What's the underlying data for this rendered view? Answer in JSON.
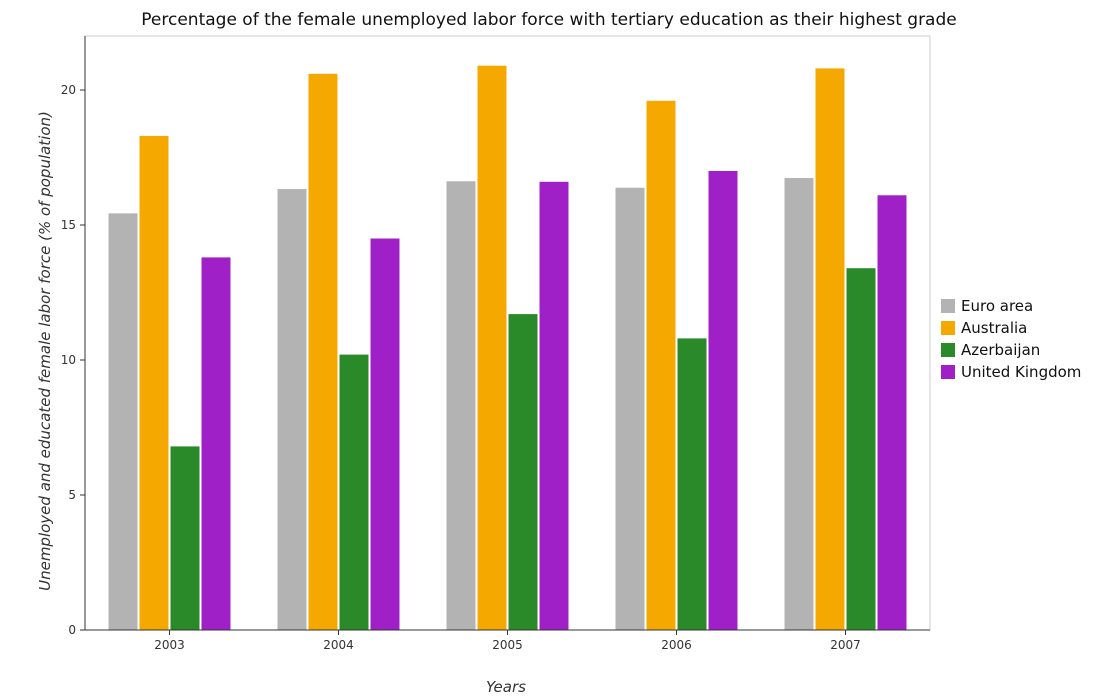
{
  "chart_data": {
    "type": "bar",
    "title": "Percentage of the female unemployed labor force with tertiary education as their highest grade",
    "xlabel": "Years",
    "ylabel": "Unemployed and educated female labor force (% of population)",
    "categories": [
      "2003",
      "2004",
      "2005",
      "2006",
      "2007"
    ],
    "ylim": [
      0,
      22
    ],
    "yticks": [
      0,
      5,
      10,
      15,
      20
    ],
    "grid": false,
    "legend_position": "right",
    "series": [
      {
        "name": "Euro area",
        "color": "#b3b3b3",
        "values": [
          15.43,
          16.33,
          16.62,
          16.38,
          16.74
        ]
      },
      {
        "name": "Australia",
        "color": "#f5a800",
        "values": [
          18.3,
          20.6,
          20.9,
          19.6,
          20.8
        ]
      },
      {
        "name": "Azerbaijan",
        "color": "#2a8a2a",
        "values": [
          6.8,
          10.2,
          11.7,
          10.8,
          13.4
        ]
      },
      {
        "name": "United Kingdom",
        "color": "#a020c8",
        "values": [
          13.8,
          14.5,
          16.6,
          17.0,
          16.1
        ]
      }
    ]
  }
}
